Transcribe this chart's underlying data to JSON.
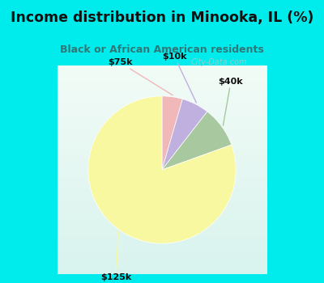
{
  "title": "Income distribution in Minooka, IL (%)",
  "subtitle": "Black or African American residents",
  "slices": [
    {
      "label": "$75k",
      "value": 4.5,
      "color": "#f0b8b8"
    },
    {
      "label": "$10k",
      "value": 6.0,
      "color": "#c0b0e0"
    },
    {
      "label": "$40k",
      "value": 9.0,
      "color": "#a8c8a0"
    },
    {
      "label": "$125k",
      "value": 80.5,
      "color": "#f8f8a0"
    }
  ],
  "bg_outer_color": "#00ecec",
  "bg_chart_color": "#d8ece4",
  "title_color": "#101010",
  "subtitle_color": "#307878",
  "label_color": "#101010",
  "startangle": 90,
  "watermark": "City-Data.com",
  "watermark_color": "#b0c8c8"
}
